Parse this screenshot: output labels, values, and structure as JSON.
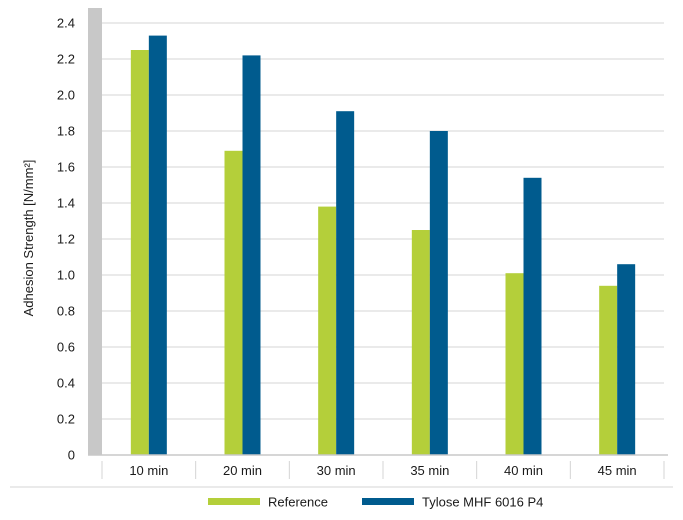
{
  "chart_data": {
    "type": "bar",
    "ylabel": "Adhesion Strength [N/mm²]",
    "xlabel": "",
    "ylim": [
      0,
      2.4
    ],
    "yticks": [
      0,
      0.2,
      0.4,
      0.6,
      0.8,
      1.0,
      1.2,
      1.4,
      1.6,
      1.8,
      2.0,
      2.2,
      2.4
    ],
    "ytick_labels": [
      "0",
      "0.2",
      "0.4",
      "0.6",
      "0.8",
      "1.0",
      "1.2",
      "1.4",
      "1.6",
      "1.8",
      "2.0",
      "2.2",
      "2.4"
    ],
    "grid": true,
    "legend_position": "bottom",
    "categories": [
      "10 min",
      "20 min",
      "30 min",
      "35 min",
      "40 min",
      "45 min"
    ],
    "series": [
      {
        "name": "Reference",
        "color": "#b4cf3a",
        "values": [
          2.25,
          1.69,
          1.38,
          1.25,
          1.01,
          0.94
        ]
      },
      {
        "name": "Tylose MHF 6016 P4",
        "color": "#005b8e",
        "values": [
          2.33,
          2.22,
          1.91,
          1.8,
          1.54,
          1.06
        ]
      }
    ],
    "colors": {
      "grid": "#d4d4d4",
      "axis_band": "#c8c8c8",
      "text": "#1a1a1a"
    }
  }
}
